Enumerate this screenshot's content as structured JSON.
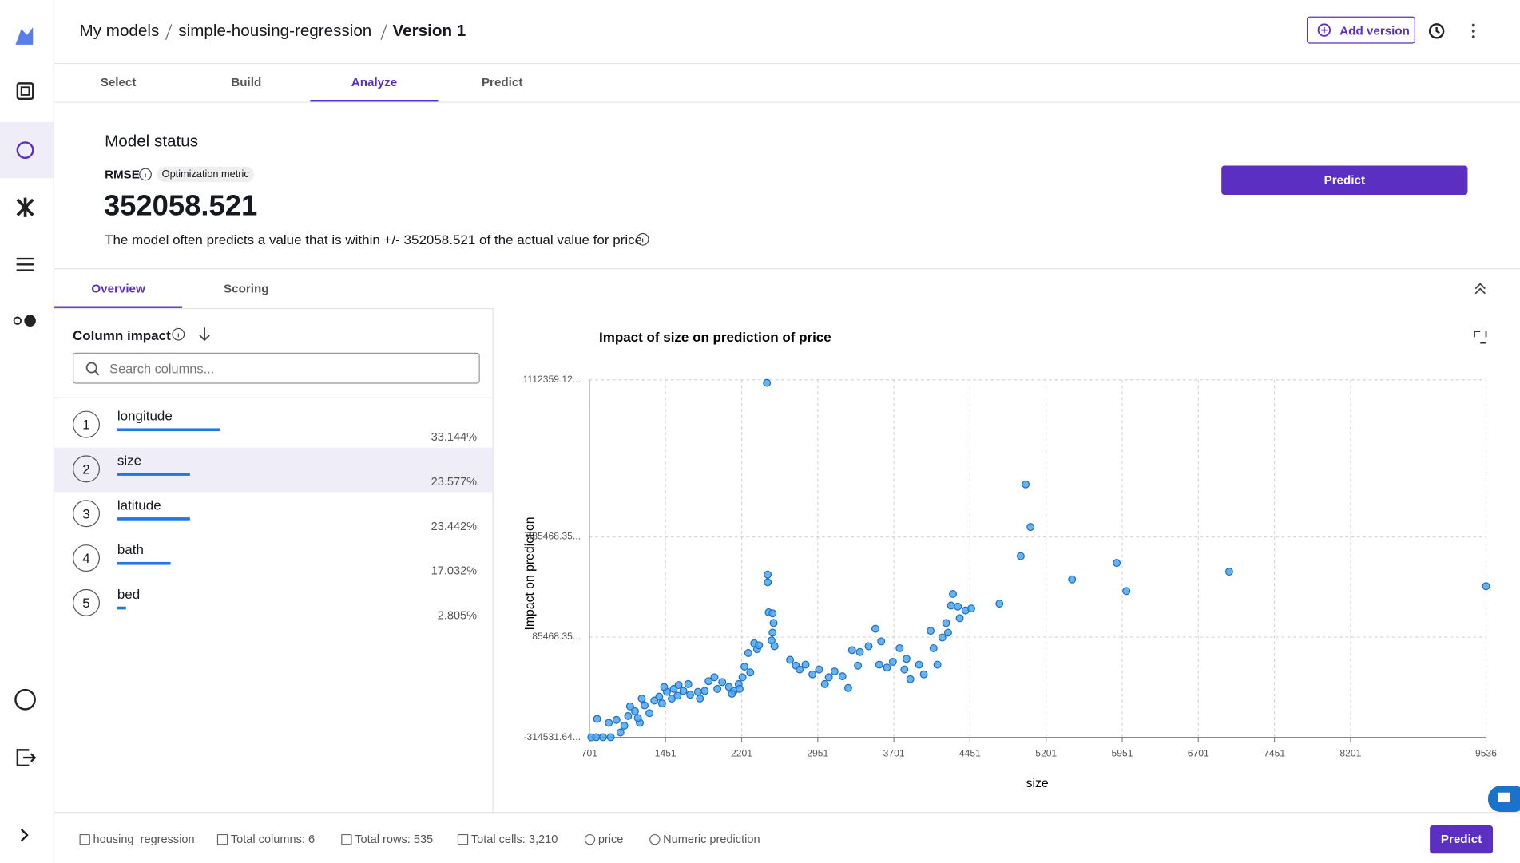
{
  "breadcrumb": [
    "My models",
    "simple-housing-regression",
    "Version 1"
  ],
  "add_version": "Add version",
  "tabs": [
    {
      "label": "Select"
    },
    {
      "label": "Build"
    },
    {
      "label": "Analyze",
      "active": true
    },
    {
      "label": "Predict"
    }
  ],
  "model_status": {
    "title": "Model status",
    "metric": "RMSE",
    "metric_badge": "Optimization metric",
    "value": "352058.521",
    "description": "The model often predicts a value that is within +/- 352058.521 of the actual value for price",
    "predict_button": "Predict"
  },
  "sub_tabs": [
    {
      "label": "Overview",
      "active": true
    },
    {
      "label": "Scoring"
    }
  ],
  "column_impact": {
    "title": "Column impact",
    "search_placeholder": "Search columns...",
    "columns": [
      {
        "rank": 1,
        "name": "longitude",
        "impact": 33.144,
        "impact_label": "33.144%"
      },
      {
        "rank": 2,
        "name": "size",
        "impact": 23.577,
        "impact_label": "23.577%",
        "selected": true
      },
      {
        "rank": 3,
        "name": "latitude",
        "impact": 23.442,
        "impact_label": "23.442%"
      },
      {
        "rank": 4,
        "name": "bath",
        "impact": 17.032,
        "impact_label": "17.032%"
      },
      {
        "rank": 5,
        "name": "bed",
        "impact": 2.805,
        "impact_label": "2.805%"
      }
    ]
  },
  "chart_data": {
    "type": "scatter",
    "title": "Impact of size on prediction of price",
    "x_label": "size",
    "y_label": "Impact on prediction",
    "color": "#4da6ec",
    "grid": true,
    "xlim": [
      701,
      9536
    ],
    "ylim": [
      -314531.64,
      1112359.12
    ],
    "xticks": [
      701,
      1451,
      2201,
      2951,
      3701,
      4451,
      5201,
      5951,
      6701,
      7451,
      8201,
      9536
    ],
    "yticks": [
      {
        "value": -314531.64,
        "label": "-314531.64..."
      },
      {
        "value": 85468.35,
        "label": "85468.35..."
      },
      {
        "value": 485468.35,
        "label": "485468.35..."
      },
      {
        "value": 1112359.12,
        "label": "1112359.12..."
      }
    ],
    "x": [
      720,
      777,
      768,
      835,
      911,
      1007,
      968,
      1083,
      1150,
      1245,
      1102,
      1198,
      1341,
      1389,
      1465,
      1532,
      1580,
      1627,
      1694,
      1771,
      1790,
      1933,
      2010,
      2076,
      2124,
      2172,
      2210,
      2229,
      2267,
      2325,
      2353,
      2286,
      2181,
      2105,
      1962,
      1876,
      1838,
      1675,
      1513,
      1417,
      1293,
      1179,
      1045,
      892,
      1217,
      1437,
      1570,
      2450,
      2458,
      2458,
      2468,
      2506,
      2516,
      2506,
      2496,
      2525,
      2372,
      2678,
      2735,
      2773,
      2831,
      2898,
      2964,
      3021,
      3060,
      3117,
      3194,
      3251,
      3289,
      3366,
      3347,
      3452,
      3519,
      3576,
      3557,
      3633,
      3691,
      3758,
      3805,
      3863,
      3825,
      3949,
      3996,
      4063,
      4092,
      4130,
      4178,
      4235,
      4216,
      4283,
      4264,
      4331,
      4350,
      4407,
      4464,
      4741,
      5000,
      5047,
      4951,
      5897,
      5457,
      5992,
      7005,
      9536
    ],
    "values": [
      -314500,
      -241000,
      -314000,
      -314000,
      -314000,
      -295200,
      -245000,
      -229500,
      -210100,
      -187000,
      -190800,
      -256500,
      -167600,
      -152100,
      -132800,
      -121200,
      -105700,
      -129000,
      -144400,
      -132800,
      -159800,
      -74800,
      -94100,
      -113400,
      -129000,
      -102000,
      -74800,
      -32200,
      21900,
      60600,
      37400,
      -55400,
      -121200,
      -140500,
      -121200,
      -90200,
      -129000,
      -102000,
      -159800,
      -179200,
      -218000,
      -237200,
      -268200,
      -256500,
      -159800,
      -113400,
      -148300,
      1100000,
      335100,
      304200,
      184300,
      180400,
      141800,
      103100,
      72200,
      49000,
      52800,
      -5200,
      -28400,
      -43800,
      -24500,
      -63200,
      -43800,
      -101900,
      -74800,
      -51600,
      -70900,
      -117400,
      33500,
      25800,
      -28400,
      49000,
      118600,
      68300,
      -24500,
      -36100,
      -12900,
      41200,
      -43800,
      -82500,
      -1400,
      -24500,
      -63200,
      110800,
      41200,
      -24500,
      83800,
      103100,
      141800,
      257800,
      211400,
      207500,
      161100,
      192000,
      199800,
      219100,
      695000,
      525000,
      408600,
      381500,
      315800,
      269400,
      346700,
      288700
    ]
  },
  "footer": {
    "items": [
      "housing_regression",
      "Total columns: 6",
      "Total rows: 535",
      "Total cells: 3,210",
      "price",
      "Numeric prediction"
    ],
    "predict_button": "Predict"
  }
}
